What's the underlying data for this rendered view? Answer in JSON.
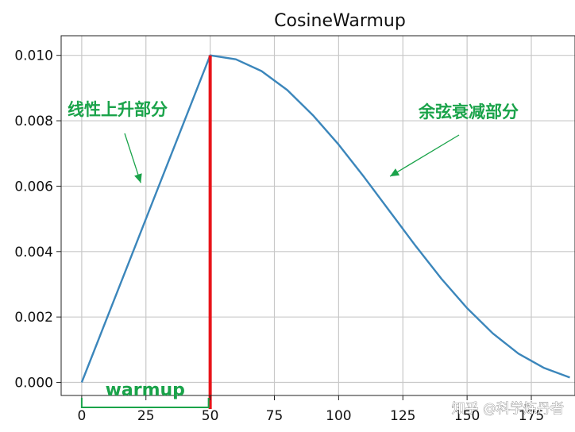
{
  "chart_data": {
    "type": "line",
    "title": "CosineWarmup",
    "xlabel": "",
    "ylabel": "",
    "xlim": [
      -8,
      192
    ],
    "ylim": [
      -0.0004,
      0.0106
    ],
    "x_ticks": [
      0,
      25,
      50,
      75,
      100,
      125,
      150,
      175
    ],
    "x_tick_labels": [
      "0",
      "25",
      "50",
      "75",
      "100",
      "125",
      "150",
      "175"
    ],
    "y_ticks": [
      0.0,
      0.002,
      0.004,
      0.006,
      0.008,
      0.01
    ],
    "y_tick_labels": [
      "0.000",
      "0.002",
      "0.004",
      "0.006",
      "0.008",
      "0.010"
    ],
    "grid": true,
    "series": [
      {
        "color": "#3b86bb",
        "x": [
          0,
          10,
          20,
          30,
          40,
          50,
          60,
          70,
          80,
          90,
          100,
          110,
          120,
          130,
          140,
          150,
          160,
          170,
          180,
          190
        ],
        "y": [
          0.0,
          0.002,
          0.004,
          0.006,
          0.008,
          0.01,
          0.00988,
          0.00952,
          0.00894,
          0.00817,
          0.00727,
          0.00627,
          0.00522,
          0.00417,
          0.00317,
          0.00227,
          0.0015,
          0.00088,
          0.00044,
          0.00015
        ]
      }
    ],
    "annotations": [
      {
        "text": "线性上升部分",
        "color": "#1aa34a",
        "points_to": [
          23,
          0.0061
        ]
      },
      {
        "text": "余弦衰减部分",
        "color": "#1aa34a",
        "points_to": [
          120,
          0.0063
        ]
      },
      {
        "text": "warmup",
        "color": "#1aa34a",
        "spans_x": [
          0,
          50
        ]
      }
    ],
    "vertical_line": {
      "x": 50,
      "color": "#e8141a"
    }
  },
  "watermark": "知乎 @科学炼丹者"
}
